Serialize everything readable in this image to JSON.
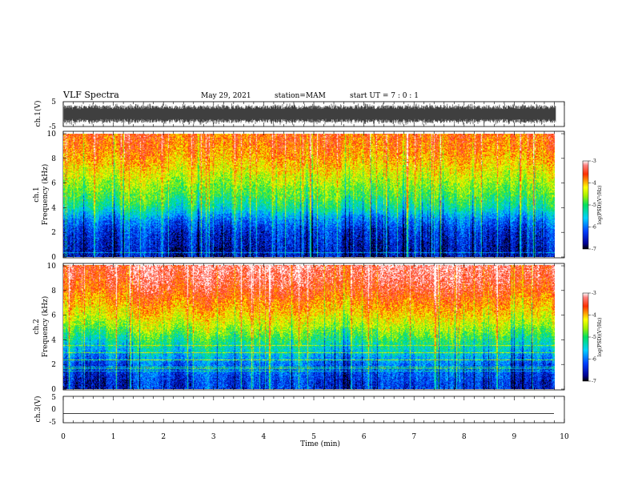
{
  "header": {
    "title": "VLF Spectra",
    "date": "May 29, 2021",
    "station": "station=MAM",
    "start_ut": "start  UT =   7 : 0  : 1"
  },
  "chart_data": [
    {
      "type": "line",
      "panel": "ch1-waveform",
      "ylabel": "ch.1(V)",
      "ylim": [
        -5,
        5
      ],
      "yticks": [
        "5",
        "-5"
      ],
      "xlim": [
        0,
        10
      ],
      "trace_color": "#000000",
      "description_of_trace": "dense broadband noise filling roughly -4 to 4 V"
    },
    {
      "type": "heatmap",
      "panel": "ch1-spectrogram",
      "ylabel_line1": "ch.1",
      "ylabel_line2": "Frequency (kHz)",
      "ylim": [
        0,
        10
      ],
      "yticks": [
        "0",
        "2",
        "4",
        "6",
        "8",
        "10"
      ],
      "xlim": [
        0,
        9.83
      ],
      "colorbar": {
        "label": "log(PSD)(V²/Hz)",
        "range": [
          -7,
          -3
        ],
        "ticks": [
          "-3",
          "-4",
          "-5",
          "-6",
          "-7"
        ]
      },
      "approx_level_by_frequency_kHz": [
        [
          0.5,
          -6.6
        ],
        [
          2,
          -6.4
        ],
        [
          3,
          -6.0
        ],
        [
          4,
          -5.3
        ],
        [
          5,
          -4.9
        ],
        [
          6,
          -4.6
        ],
        [
          7,
          -4.3
        ],
        [
          8,
          -4.0
        ],
        [
          9,
          -3.8
        ],
        [
          10,
          -3.7
        ]
      ]
    },
    {
      "type": "heatmap",
      "panel": "ch2-spectrogram",
      "ylabel_line1": "ch.2",
      "ylabel_line2": "Frequency (kHz)",
      "ylim": [
        0,
        10
      ],
      "yticks": [
        "0",
        "2",
        "4",
        "6",
        "8",
        "10"
      ],
      "xlim": [
        0,
        9.83
      ],
      "colorbar": {
        "label": "log(PSD)(V²/Hz)",
        "range": [
          -7,
          -3
        ],
        "ticks": [
          "-3",
          "-4",
          "-5",
          "-6",
          "-7"
        ]
      },
      "approx_level_by_frequency_kHz": [
        [
          0.5,
          -6.4
        ],
        [
          2,
          -6.1
        ],
        [
          3,
          -5.6
        ],
        [
          4,
          -5.1
        ],
        [
          5,
          -4.6
        ],
        [
          6,
          -4.2
        ],
        [
          7,
          -3.9
        ],
        [
          8,
          -3.6
        ],
        [
          9,
          -3.4
        ],
        [
          10,
          -3.3
        ]
      ]
    },
    {
      "type": "line",
      "panel": "ch3-waveform",
      "ylabel": "ch.3(V)",
      "ylim": [
        -5,
        5
      ],
      "yticks": [
        "5",
        "0",
        "-5"
      ],
      "xlim": [
        0,
        10
      ],
      "trace_value_V": -1.5,
      "xlabel": "Time (min)",
      "xticks": [
        "0",
        "1",
        "2",
        "3",
        "4",
        "5",
        "6",
        "7",
        "8",
        "9",
        "10"
      ]
    }
  ]
}
